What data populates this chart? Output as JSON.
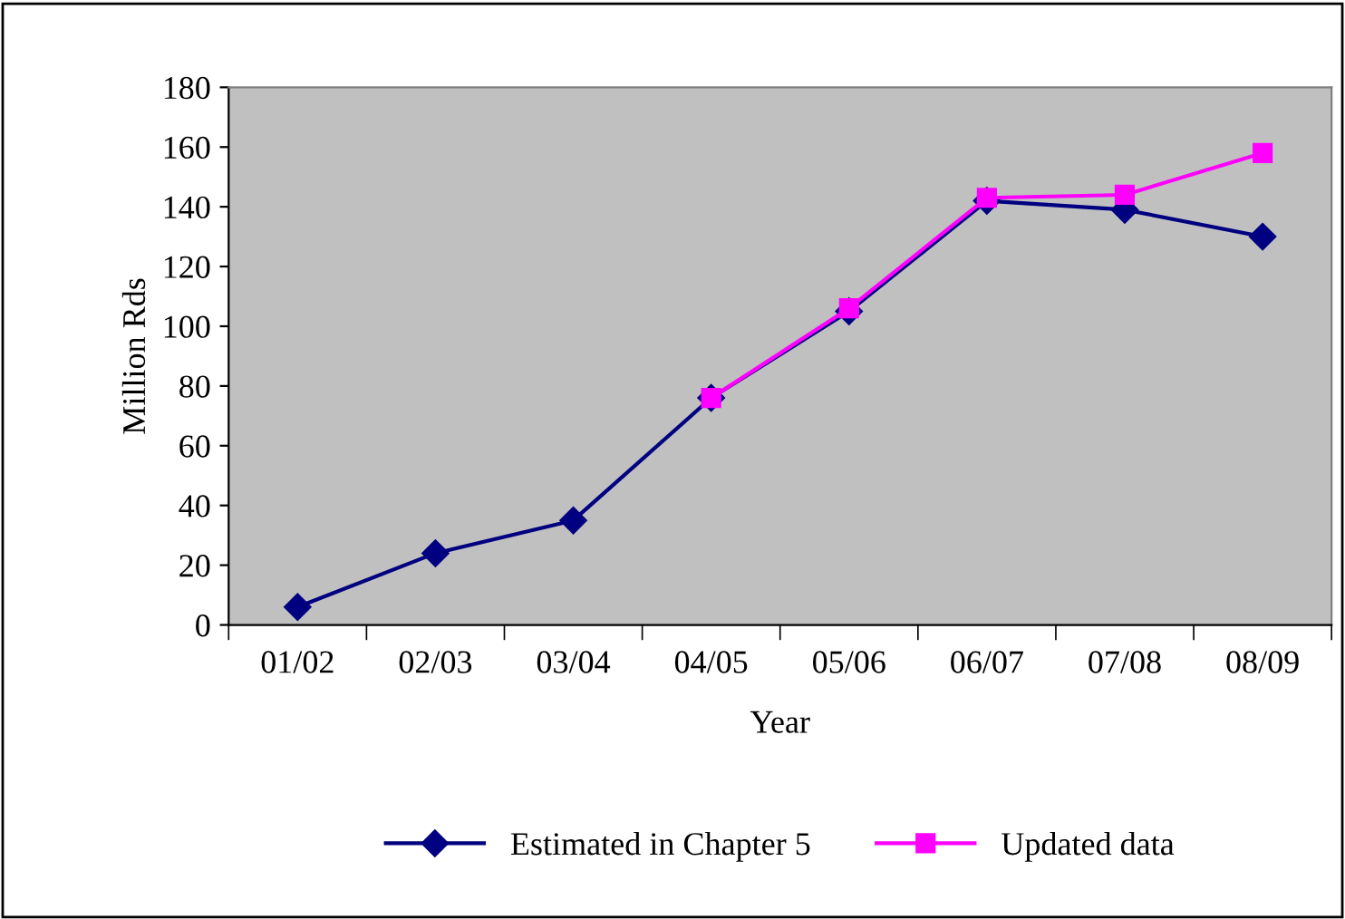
{
  "chart_data": {
    "type": "line",
    "xlabel": "Year",
    "ylabel": "Million Rds",
    "categories": [
      "01/02",
      "02/03",
      "03/04",
      "04/05",
      "05/06",
      "06/07",
      "07/08",
      "08/09"
    ],
    "series": [
      {
        "name": "Estimated in Chapter 5",
        "color": "#000080",
        "marker": "diamond",
        "values": [
          6,
          24,
          35,
          76,
          105,
          142,
          139,
          130
        ]
      },
      {
        "name": "Updated data",
        "color": "#ff00ff",
        "marker": "square",
        "values": [
          null,
          null,
          null,
          76,
          106,
          143,
          144,
          158
        ]
      }
    ],
    "ylim": [
      0,
      180
    ],
    "yticks": [
      0,
      20,
      40,
      60,
      80,
      100,
      120,
      140,
      160,
      180
    ],
    "grid": false,
    "legend": "bottom",
    "line_style": "solid"
  }
}
